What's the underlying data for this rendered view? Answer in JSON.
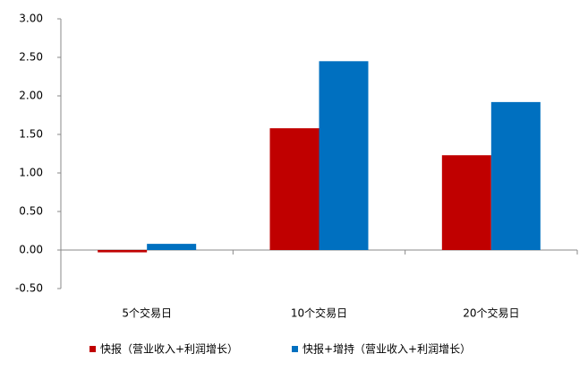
{
  "chart_data": {
    "type": "bar",
    "categories": [
      "5个交易日",
      "10个交易日",
      "20个交易日"
    ],
    "series": [
      {
        "name": "快报（营业收入+利润增长）",
        "color": "#c00000",
        "values": [
          -0.03,
          1.58,
          1.23
        ]
      },
      {
        "name": "快报+增持（营业收入+利润增长）",
        "color": "#0070c0",
        "values": [
          0.08,
          2.45,
          1.92
        ]
      }
    ],
    "ylim": [
      -0.5,
      3.0
    ],
    "yticks": [
      {
        "value": -0.5,
        "label": "-0.50"
      },
      {
        "value": 0,
        "label": "0.00"
      },
      {
        "value": 0.5,
        "label": "0.50"
      },
      {
        "value": 1.0,
        "label": "1.00"
      },
      {
        "value": 1.5,
        "label": "1.50"
      },
      {
        "value": 2.0,
        "label": "2.00"
      },
      {
        "value": 2.5,
        "label": "2.50"
      },
      {
        "value": 3.0,
        "label": "3.00"
      }
    ],
    "legend": "bottom"
  }
}
